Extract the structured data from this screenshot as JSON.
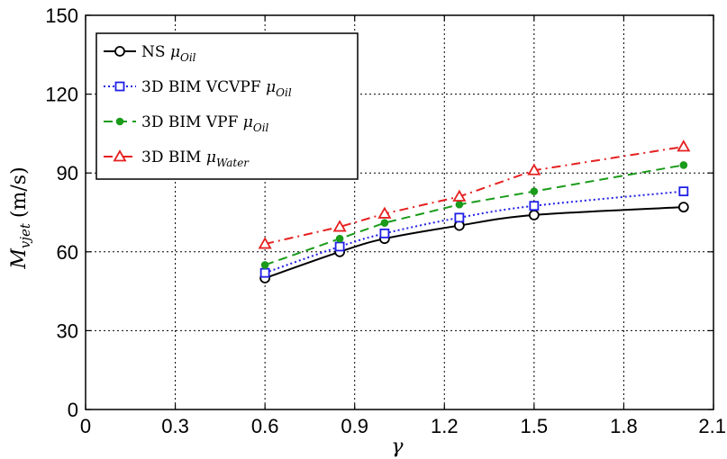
{
  "chart_data": {
    "type": "line",
    "title": "",
    "xlabel": "γ",
    "ylabel": {
      "symbol": "M",
      "subscript": "vjet",
      "units": "(m/s)"
    },
    "xlim": [
      0,
      2.1
    ],
    "ylim": [
      0,
      150
    ],
    "xticks": [
      0,
      0.3,
      0.6,
      0.9,
      1.2,
      1.5,
      1.8,
      2.1
    ],
    "xtick_labels": [
      "0",
      "0.3",
      "0.6",
      "0.9",
      "1.2",
      "1.5",
      "1.8",
      "2.1"
    ],
    "yticks": [
      0,
      30,
      60,
      90,
      120,
      150
    ],
    "ytick_labels": [
      "0",
      "30",
      "60",
      "90",
      "120",
      "150"
    ],
    "grid": true,
    "legend_position": "top-left",
    "x": [
      0.6,
      0.85,
      1.0,
      1.25,
      1.5,
      2.0
    ],
    "series": [
      {
        "name": "NS μOil",
        "label_prefix": "NS ",
        "label_symbol": "μ",
        "label_sub": "Oil",
        "values": [
          50,
          60,
          65,
          70,
          74,
          77
        ],
        "color": "#000000",
        "marker": "circle",
        "dash": "solid",
        "curve": "smooth"
      },
      {
        "name": "3D BIM VCVPF μOil",
        "label_prefix": "3D BIM VCVPF ",
        "label_symbol": "μ",
        "label_sub": "Oil",
        "values": [
          52,
          62,
          67,
          73,
          77.5,
          83
        ],
        "color": "#1f1fe6",
        "marker": "square",
        "dash": "dotted",
        "curve": "smooth"
      },
      {
        "name": "3D BIM VPF μOil",
        "label_prefix": "3D BIM VPF ",
        "label_symbol": "μ",
        "label_sub": "Oil",
        "values": [
          55,
          65,
          71,
          78,
          83,
          93
        ],
        "color": "#1a9b1a",
        "marker": "dot",
        "dash": "dashed",
        "curve": "linear"
      },
      {
        "name": "3D BIM μWater",
        "label_prefix": "3D BIM ",
        "label_symbol": "μ",
        "label_sub": "Water",
        "values": [
          63,
          69.5,
          74.5,
          81,
          91,
          100
        ],
        "color": "#e62020",
        "marker": "triangle",
        "dash": "dashdot",
        "curve": "linear"
      }
    ]
  }
}
